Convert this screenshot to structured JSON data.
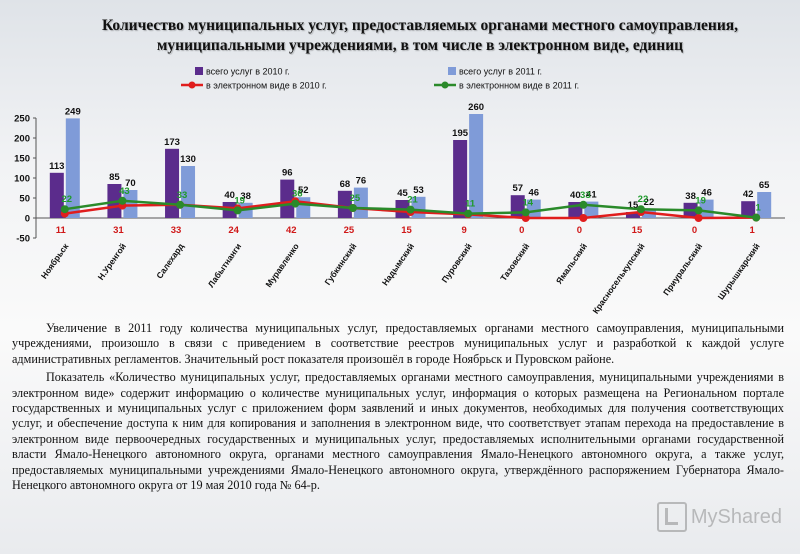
{
  "title": {
    "line1": "Количество муниципальных услуг, предоставляемых органами местного самоуправления,",
    "line2": "муниципальными учреждениями, в том числе в электронном виде, единиц"
  },
  "colors": {
    "bar2010": "#5b2c8c",
    "bar2011": "#7f9bd8",
    "line2010": "#e01d1d",
    "line2011": "#2a8a2a"
  },
  "chart_data": {
    "type": "bar",
    "categories": [
      "Ноябрьск",
      "Н.Уренгой",
      "Салехард",
      "Лабытнанги",
      "Муравленко",
      "Губкинский",
      "Надымский",
      "Пуровский",
      "Тазовский",
      "Ямальский",
      "Красноселькупский",
      "Приуральский",
      "Шурышкарский"
    ],
    "series": [
      {
        "name": "всего услуг в 2010 г.",
        "kind": "bar",
        "values": [
          113,
          85,
          173,
          40,
          96,
          68,
          45,
          195,
          57,
          40,
          15,
          38,
          42
        ]
      },
      {
        "name": "всего услуг в 2011 г.",
        "kind": "bar",
        "values": [
          249,
          70,
          130,
          38,
          52,
          76,
          53,
          260,
          46,
          41,
          22,
          46,
          65
        ]
      },
      {
        "name": "в электронном виде в 2010 г.",
        "kind": "line",
        "values": [
          11,
          31,
          33,
          24,
          42,
          25,
          15,
          9,
          0,
          0,
          15,
          0,
          1
        ]
      },
      {
        "name": "в электронном виде в 2011 г.",
        "kind": "line",
        "values": [
          22,
          43,
          33,
          19,
          36,
          25,
          21,
          11,
          14,
          33,
          22,
          19,
          1
        ]
      }
    ],
    "yticks": [
      "250",
      "200",
      "150",
      "100",
      "50",
      "0",
      "-50"
    ],
    "ylim": [
      -50,
      250
    ],
    "legend_position": "top"
  },
  "text": {
    "p1": "Увеличение в 2011 году количества муниципальных услуг, предоставляемых органами местного самоуправления, муниципальными учреждениями, произошло в связи с приведением в соответствие реестров муниципальных услуг и разработкой к каждой услуге административных регламентов. Значительный рост показателя произошёл в городе Ноябрьск и Пуровском районе.",
    "p2": "Показатель «Количество муниципальных услуг, предоставляемых органами местного самоуправления, муниципальными учреждениями в электронном виде» содержит информацию о количестве муниципальных услуг, информация о которых размещена на Региональном портале государственных и муниципальных услуг с приложением форм заявлений и иных документов, необходимых для получения соответствующих услуг, и обеспечение доступа к ним для копирования и заполнения в электронном виде, что соответствует этапам перехода на предоставление в электронном виде первоочередных государственных и муниципальных услуг, предоставляемых исполнительными органами государственной власти Ямало-Ненецкого автономного округа, органами местного самоуправления Ямало-Ненецкого автономного округа, а также услуг, предоставляемых муниципальными учреждениями Ямало-Ненецкого автономного округа, утверждённого распоряжением Губернатора Ямало-Ненецкого автономного округа от 19 мая 2010 года № 64-р."
  },
  "watermark": "MyShared"
}
